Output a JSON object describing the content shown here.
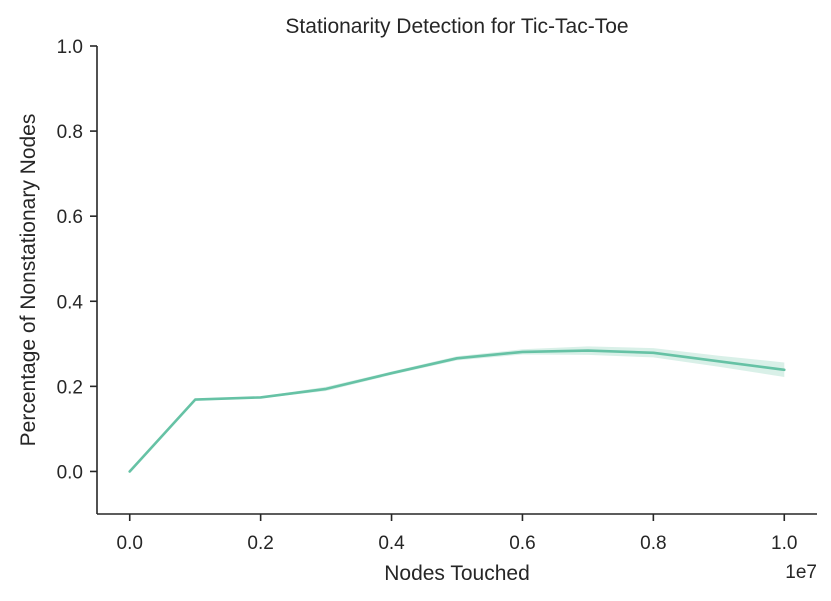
{
  "chart_data": {
    "type": "line",
    "title": "Stationarity Detection for Tic-Tac-Toe",
    "xlabel": "Nodes Touched",
    "ylabel": "Percentage of Nonstationary Nodes",
    "x_offset_label": "1e7",
    "xlim": [
      -0.05,
      1.05
    ],
    "ylim": [
      -0.1,
      1.0
    ],
    "x_ticks": [
      0.0,
      0.2,
      0.4,
      0.6,
      0.8,
      1.0
    ],
    "x_tick_labels": [
      "0.0",
      "0.2",
      "0.4",
      "0.6",
      "0.8",
      "1.0"
    ],
    "y_ticks": [
      0.0,
      0.2,
      0.4,
      0.6,
      0.8,
      1.0
    ],
    "y_tick_labels": [
      "0.0",
      "0.2",
      "0.4",
      "0.6",
      "0.8",
      "1.0"
    ],
    "grid": false,
    "series": [
      {
        "color": "#66c2a5",
        "x": [
          0.0,
          0.1,
          0.2,
          0.3,
          0.4,
          0.5,
          0.6,
          0.7,
          0.8,
          0.9,
          1.0
        ],
        "values": [
          0.0,
          0.169,
          0.174,
          0.194,
          0.231,
          0.266,
          0.281,
          0.284,
          0.279,
          0.259,
          0.239
        ],
        "ci_lower": [
          0.0,
          0.167,
          0.172,
          0.189,
          0.227,
          0.261,
          0.275,
          0.274,
          0.268,
          0.246,
          0.222
        ],
        "ci_upper": [
          0.0,
          0.171,
          0.176,
          0.199,
          0.235,
          0.271,
          0.287,
          0.294,
          0.29,
          0.272,
          0.256
        ]
      }
    ]
  }
}
